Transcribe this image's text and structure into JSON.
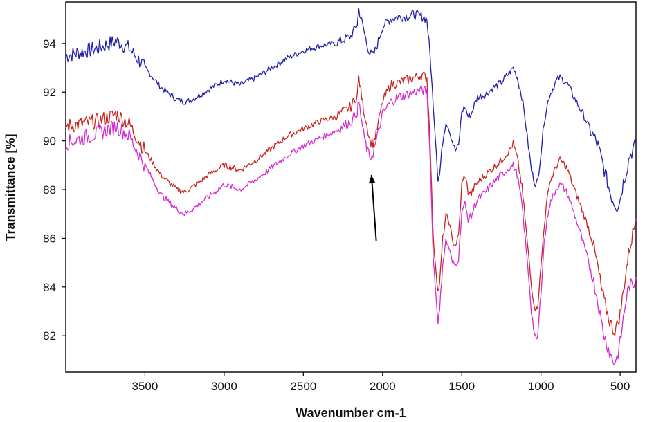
{
  "chart_data": {
    "type": "line",
    "title": "",
    "xlabel": "Wavenumber cm-1",
    "ylabel": "Transmittance [%]",
    "xlim": [
      4000,
      400
    ],
    "ylim": [
      80.5,
      95.7
    ],
    "x_reversed": true,
    "xticks": [
      3500,
      3000,
      2500,
      2000,
      1500,
      1000,
      500
    ],
    "yticks": [
      82,
      84,
      86,
      88,
      90,
      92,
      94
    ],
    "grid": false,
    "legend": "none",
    "series": [
      {
        "color": "#1f1fa8",
        "x": [
          4000,
          3800,
          3680,
          3600,
          3500,
          3400,
          3300,
          3250,
          3200,
          3100,
          3000,
          2950,
          2900,
          2800,
          2700,
          2600,
          2500,
          2400,
          2300,
          2200,
          2160,
          2150,
          2120,
          2100,
          2080,
          2060,
          2040,
          2000,
          1950,
          1900,
          1850,
          1800,
          1750,
          1720,
          1700,
          1690,
          1680,
          1660,
          1650,
          1640,
          1620,
          1600,
          1580,
          1560,
          1540,
          1520,
          1500,
          1480,
          1460,
          1440,
          1420,
          1400,
          1350,
          1300,
          1250,
          1200,
          1175,
          1150,
          1120,
          1100,
          1080,
          1060,
          1040,
          1030,
          1020,
          1000,
          980,
          950,
          900,
          880,
          860,
          840,
          820,
          800,
          760,
          720,
          680,
          660,
          640,
          620,
          600,
          580,
          560,
          540,
          520,
          500,
          480,
          460,
          440,
          420,
          400
        ],
        "values": [
          93.5,
          93.8,
          94.1,
          93.8,
          93.0,
          92.2,
          91.7,
          91.6,
          91.7,
          92.1,
          92.5,
          92.4,
          92.3,
          92.6,
          93.0,
          93.4,
          93.7,
          93.9,
          94.0,
          94.3,
          94.8,
          95.4,
          94.6,
          94.0,
          93.6,
          93.5,
          93.8,
          94.7,
          95.0,
          95.1,
          95.1,
          95.2,
          95.1,
          95.0,
          93.5,
          92.5,
          91.5,
          89.5,
          88.4,
          88.6,
          90.0,
          90.8,
          90.5,
          90.0,
          89.6,
          89.8,
          91.2,
          91.4,
          91.0,
          91.1,
          91.5,
          91.8,
          91.9,
          92.2,
          92.4,
          92.8,
          93.0,
          92.6,
          91.8,
          90.9,
          89.8,
          88.8,
          88.3,
          88.2,
          88.4,
          89.5,
          90.8,
          91.8,
          92.5,
          92.6,
          92.5,
          92.4,
          92.2,
          91.9,
          91.4,
          90.9,
          90.3,
          90.1,
          89.8,
          89.3,
          88.8,
          88.3,
          87.8,
          87.5,
          87.3,
          87.6,
          88.3,
          88.8,
          89.4,
          89.6,
          89.9
        ]
      },
      {
        "color": "#c8231e",
        "x": [
          4000,
          3800,
          3680,
          3600,
          3500,
          3400,
          3300,
          3250,
          3200,
          3100,
          3000,
          2950,
          2900,
          2800,
          2700,
          2600,
          2500,
          2400,
          2300,
          2200,
          2160,
          2150,
          2120,
          2100,
          2080,
          2060,
          2040,
          2000,
          1950,
          1900,
          1850,
          1800,
          1750,
          1720,
          1700,
          1690,
          1680,
          1660,
          1650,
          1640,
          1620,
          1600,
          1580,
          1560,
          1540,
          1520,
          1500,
          1480,
          1460,
          1440,
          1420,
          1400,
          1350,
          1300,
          1250,
          1200,
          1175,
          1150,
          1120,
          1100,
          1080,
          1060,
          1040,
          1030,
          1020,
          1000,
          980,
          950,
          900,
          880,
          860,
          840,
          820,
          800,
          760,
          720,
          680,
          660,
          640,
          620,
          600,
          580,
          560,
          540,
          520,
          500,
          480,
          460,
          440,
          420,
          400
        ],
        "values": [
          90.6,
          90.8,
          91.1,
          90.7,
          89.6,
          88.6,
          88.0,
          87.9,
          88.1,
          88.6,
          89.0,
          88.9,
          88.8,
          89.2,
          89.7,
          90.2,
          90.5,
          90.8,
          91.0,
          91.4,
          91.9,
          92.6,
          91.3,
          90.7,
          90.0,
          89.9,
          90.3,
          91.6,
          92.3,
          92.4,
          92.5,
          92.6,
          92.7,
          92.6,
          90.0,
          88.0,
          86.0,
          84.5,
          83.8,
          84.1,
          86.0,
          86.9,
          86.7,
          85.9,
          85.7,
          86.1,
          88.2,
          88.6,
          87.9,
          87.8,
          88.1,
          88.3,
          88.6,
          88.9,
          89.2,
          89.6,
          89.9,
          89.3,
          88.1,
          86.8,
          85.4,
          84.0,
          83.2,
          83.1,
          83.3,
          84.8,
          86.5,
          88.2,
          89.0,
          89.2,
          89.1,
          88.9,
          88.6,
          88.2,
          87.5,
          86.8,
          86.1,
          85.4,
          84.8,
          84.0,
          83.4,
          82.9,
          82.5,
          82.2,
          82.4,
          82.9,
          83.8,
          84.8,
          85.6,
          86.2,
          86.8
        ]
      },
      {
        "color": "#d52bd0",
        "x": [
          4000,
          3800,
          3680,
          3600,
          3500,
          3400,
          3300,
          3250,
          3200,
          3100,
          3000,
          2950,
          2900,
          2800,
          2700,
          2600,
          2500,
          2400,
          2300,
          2200,
          2160,
          2150,
          2120,
          2100,
          2080,
          2060,
          2040,
          2000,
          1950,
          1900,
          1850,
          1800,
          1750,
          1720,
          1700,
          1690,
          1680,
          1660,
          1650,
          1640,
          1620,
          1600,
          1580,
          1560,
          1540,
          1520,
          1500,
          1480,
          1460,
          1440,
          1420,
          1400,
          1350,
          1300,
          1250,
          1200,
          1175,
          1150,
          1120,
          1100,
          1080,
          1060,
          1040,
          1030,
          1020,
          1000,
          980,
          950,
          900,
          880,
          860,
          840,
          820,
          800,
          760,
          720,
          680,
          660,
          640,
          620,
          600,
          580,
          560,
          540,
          520,
          500,
          480,
          460,
          440,
          420,
          400
        ],
        "values": [
          89.9,
          90.3,
          90.6,
          90.2,
          89.0,
          87.8,
          87.2,
          87.0,
          87.2,
          87.7,
          88.2,
          88.1,
          88.0,
          88.4,
          88.9,
          89.4,
          89.8,
          90.1,
          90.4,
          90.8,
          91.2,
          91.6,
          90.3,
          89.7,
          89.3,
          89.5,
          90.0,
          91.1,
          91.6,
          91.8,
          91.9,
          92.0,
          92.1,
          92.0,
          89.4,
          87.3,
          85.2,
          83.4,
          82.6,
          83.0,
          85.0,
          85.9,
          85.6,
          85.0,
          84.9,
          85.2,
          87.1,
          87.4,
          86.8,
          86.9,
          87.3,
          87.6,
          87.9,
          88.3,
          88.6,
          88.9,
          89.0,
          88.6,
          87.4,
          86.0,
          84.6,
          83.0,
          82.0,
          81.8,
          82.0,
          83.8,
          85.8,
          87.3,
          88.1,
          88.2,
          88.1,
          87.9,
          87.6,
          87.2,
          86.4,
          85.5,
          84.6,
          84.0,
          83.4,
          82.6,
          82.0,
          81.6,
          81.2,
          80.9,
          81.1,
          81.7,
          82.7,
          83.6,
          84.1,
          84.0,
          84.4
        ]
      }
    ],
    "annotations": [
      {
        "type": "arrow",
        "from": [
          2040,
          85.9
        ],
        "to": [
          2070,
          88.6
        ],
        "color": "#000000"
      }
    ]
  }
}
